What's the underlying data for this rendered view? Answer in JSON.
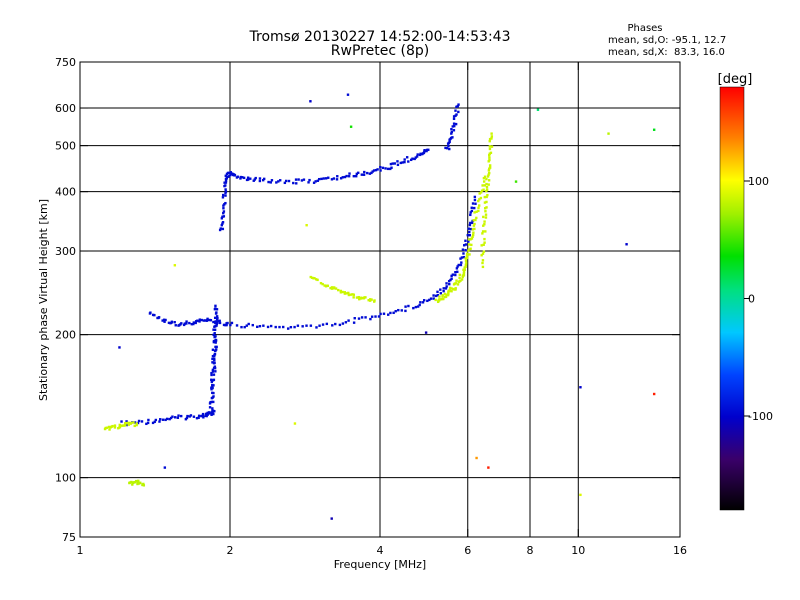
{
  "chart_data": {
    "type": "scatter",
    "title": "Tromsø 20130227 14:52:00-14:53:43",
    "subtitle": "RwPretec (8p)",
    "xlabel": "Frequency [MHz]",
    "ylabel": "Stationary phase Virtual Height [km]",
    "x_scale": "log",
    "y_scale": "log",
    "xlim": [
      1,
      16
    ],
    "ylim": [
      75,
      750
    ],
    "x_ticks": [
      1,
      2,
      4,
      6,
      8,
      10,
      16
    ],
    "y_ticks": [
      75,
      100,
      200,
      300,
      400,
      500,
      600,
      750
    ],
    "grid": true,
    "phase_info": {
      "title": "Phases",
      "line1": "mean, sd,O: -95.1, 12.7",
      "line2": "mean, sd,X:  83.3, 16.0"
    },
    "colorbar": {
      "label": "[deg]",
      "range": [
        -180,
        180
      ],
      "ticks": [
        100,
        0,
        -100
      ],
      "tick_labels": [
        "100",
        "0",
        "-100"
      ]
    },
    "traces": [
      {
        "x": [
          1.22,
          1.35,
          1.48,
          1.62,
          1.75,
          1.82,
          1.86
        ],
        "y": [
          130,
          131,
          133,
          134,
          135,
          136,
          138
        ],
        "phase": -95
      },
      {
        "x": [
          1.83,
          1.85,
          1.84,
          1.86,
          1.85,
          1.87,
          1.86,
          1.88,
          1.87
        ],
        "y": [
          140,
          150,
          160,
          170,
          180,
          190,
          200,
          215,
          230
        ],
        "phase": -95
      },
      {
        "x": [
          1.38,
          1.48,
          1.58,
          1.68,
          1.78,
          1.88,
          2.0,
          2.3,
          2.7,
          3.2,
          3.7,
          4.2,
          4.7,
          5.1,
          5.4,
          5.65,
          5.85,
          6.0,
          6.1,
          6.2
        ],
        "y": [
          222,
          214,
          210,
          212,
          215,
          213,
          210,
          208,
          207,
          210,
          216,
          222,
          230,
          240,
          252,
          268,
          290,
          320,
          350,
          390
        ],
        "phase": -95
      },
      {
        "x": [
          1.92,
          1.94,
          1.95,
          1.96,
          2.0,
          2.06,
          2.2,
          2.4,
          2.7,
          3.0,
          3.3,
          3.6,
          3.9,
          4.2,
          4.5,
          4.8,
          5.0
        ],
        "y": [
          330,
          360,
          400,
          430,
          440,
          430,
          425,
          422,
          420,
          422,
          428,
          435,
          442,
          452,
          465,
          480,
          490
        ],
        "phase": -95
      },
      {
        "x": [
          5.2,
          5.35,
          5.5,
          5.65,
          5.8,
          5.9,
          6.0,
          6.1,
          6.2,
          6.35,
          6.5
        ],
        "y": [
          235,
          240,
          246,
          252,
          262,
          275,
          295,
          320,
          350,
          390,
          430
        ],
        "phase": 85
      },
      {
        "x": [
          2.9,
          3.1,
          3.3,
          3.5,
          3.7,
          3.9
        ],
        "y": [
          265,
          255,
          248,
          242,
          238,
          236
        ],
        "phase": 85
      },
      {
        "x": [
          1.12,
          1.18,
          1.24,
          1.3
        ],
        "y": [
          127,
          128,
          129,
          130
        ],
        "phase": 85
      },
      {
        "x": [
          6.4,
          6.45,
          6.5,
          6.55,
          6.6,
          6.65,
          6.7
        ],
        "y": [
          280,
          320,
          360,
          400,
          440,
          480,
          530
        ],
        "phase": 85
      },
      {
        "x": [
          5.45,
          5.55,
          5.65,
          5.75
        ],
        "y": [
          490,
          520,
          560,
          610
        ],
        "phase": -95
      },
      {
        "x": [
          1.26,
          1.3,
          1.34
        ],
        "y": [
          97,
          98,
          97
        ],
        "phase": 80
      }
    ],
    "scatter_points": [
      {
        "x": 1.2,
        "y": 188,
        "phase": -100
      },
      {
        "x": 1.55,
        "y": 280,
        "phase": 90
      },
      {
        "x": 1.48,
        "y": 105,
        "phase": -95
      },
      {
        "x": 2.9,
        "y": 620,
        "phase": -100
      },
      {
        "x": 3.45,
        "y": 640,
        "phase": -95
      },
      {
        "x": 3.5,
        "y": 548,
        "phase": 40
      },
      {
        "x": 4.95,
        "y": 202,
        "phase": -110
      },
      {
        "x": 6.25,
        "y": 110,
        "phase": 130
      },
      {
        "x": 6.6,
        "y": 105,
        "phase": 170
      },
      {
        "x": 7.5,
        "y": 420,
        "phase": 50
      },
      {
        "x": 8.3,
        "y": 595,
        "phase": 10
      },
      {
        "x": 10.1,
        "y": 155,
        "phase": -100
      },
      {
        "x": 11.5,
        "y": 530,
        "phase": 80
      },
      {
        "x": 12.5,
        "y": 310,
        "phase": -100
      },
      {
        "x": 14.2,
        "y": 540,
        "phase": 30
      },
      {
        "x": 14.2,
        "y": 150,
        "phase": 170
      },
      {
        "x": 10.1,
        "y": 92,
        "phase": 90
      },
      {
        "x": 3.2,
        "y": 82,
        "phase": -110
      },
      {
        "x": 2.7,
        "y": 130,
        "phase": 90
      },
      {
        "x": 2.85,
        "y": 340,
        "phase": 90
      }
    ]
  }
}
